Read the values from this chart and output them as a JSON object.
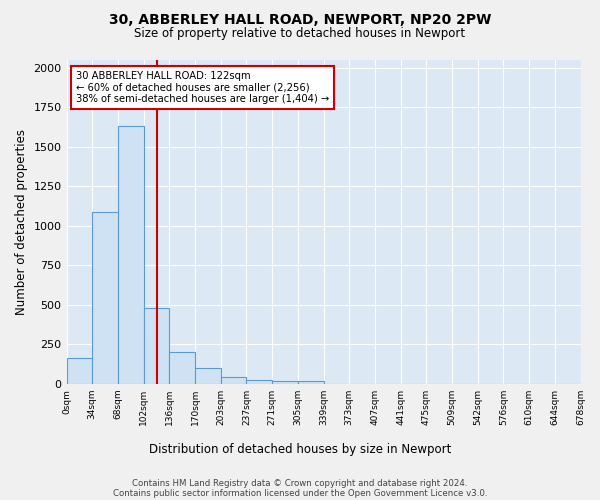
{
  "title1": "30, ABBERLEY HALL ROAD, NEWPORT, NP20 2PW",
  "title2": "Size of property relative to detached houses in Newport",
  "xlabel": "Distribution of detached houses by size in Newport",
  "ylabel": "Number of detached properties",
  "bin_labels": [
    "0sqm",
    "34sqm",
    "68sqm",
    "102sqm",
    "136sqm",
    "170sqm",
    "203sqm",
    "237sqm",
    "271sqm",
    "305sqm",
    "339sqm",
    "373sqm",
    "407sqm",
    "441sqm",
    "475sqm",
    "509sqm",
    "542sqm",
    "576sqm",
    "610sqm",
    "644sqm",
    "678sqm"
  ],
  "bar_heights": [
    165,
    1090,
    1630,
    480,
    200,
    100,
    40,
    25,
    20,
    15,
    0,
    0,
    0,
    0,
    0,
    0,
    0,
    0,
    0,
    0
  ],
  "bar_color": "#cfe2f3",
  "bar_edge_color": "#5b9bd5",
  "red_line_x": 3.53,
  "red_line_color": "#cc0000",
  "annotation_text": "30 ABBERLEY HALL ROAD: 122sqm\n← 60% of detached houses are smaller (2,256)\n38% of semi-detached houses are larger (1,404) →",
  "annotation_box_color": "#ffffff",
  "annotation_box_edge": "#cc0000",
  "footer1": "Contains HM Land Registry data © Crown copyright and database right 2024.",
  "footer2": "Contains public sector information licensed under the Open Government Licence v3.0.",
  "background_color": "#dce9f5",
  "fig_background_color": "#f0f0f0",
  "ylim": [
    0,
    2050
  ],
  "figsize": [
    6.0,
    5.0
  ],
  "dpi": 100
}
